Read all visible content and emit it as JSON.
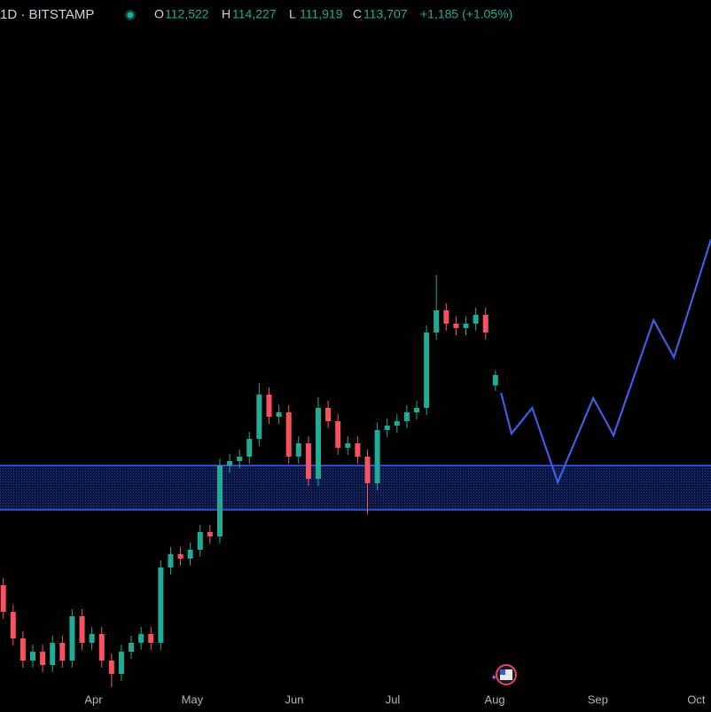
{
  "chart_data": {
    "type": "candlestick",
    "title": "1D · BITSTAMP",
    "legend_values": [
      {
        "label": "O",
        "value": "112,522"
      },
      {
        "label": "H",
        "value": "114,227"
      },
      {
        "label": "L",
        "value": "111,919"
      },
      {
        "label": "C",
        "value": "113,707"
      }
    ],
    "change": "+1,185 (+1.05%)",
    "up_color": "#22ab94",
    "down_color": "#f7525f",
    "x": [
      1,
      4,
      7,
      10,
      13,
      16,
      19,
      22,
      25,
      28,
      31,
      34,
      37,
      40,
      43,
      46,
      49,
      52,
      55,
      58,
      61,
      64,
      67,
      70,
      73,
      76,
      79,
      82,
      85,
      88,
      91,
      94,
      97,
      100,
      103,
      106,
      109,
      112,
      115,
      118,
      121,
      124,
      127,
      130,
      133,
      136,
      139,
      142,
      145,
      148,
      151
    ],
    "open": [
      90000,
      87000,
      84000,
      81500,
      82500,
      81000,
      83500,
      81500,
      86500,
      83500,
      84500,
      81500,
      80000,
      82500,
      83500,
      84500,
      83500,
      92000,
      93500,
      93000,
      94000,
      96000,
      95500,
      103500,
      104000,
      104500,
      106500,
      111500,
      109000,
      109500,
      104500,
      106000,
      102000,
      110000,
      108500,
      105500,
      106000,
      104500,
      101500,
      107500,
      108000,
      108500,
      109500,
      110000,
      118500,
      121000,
      119500,
      119000,
      119500,
      120500,
      112522
    ],
    "high": [
      90800,
      87800,
      84800,
      83300,
      83300,
      84300,
      84300,
      87300,
      87300,
      85300,
      85300,
      82300,
      83300,
      84300,
      85300,
      85300,
      92800,
      94300,
      94300,
      94800,
      96800,
      96800,
      104300,
      104800,
      105300,
      107300,
      112800,
      112300,
      110300,
      110300,
      106800,
      106800,
      111200,
      110800,
      109300,
      106800,
      106800,
      105300,
      108300,
      108800,
      109300,
      110300,
      110800,
      119300,
      125000,
      121800,
      120300,
      120300,
      121300,
      121300,
      114227
    ],
    "low": [
      86200,
      83200,
      80700,
      80700,
      80200,
      80200,
      80700,
      80700,
      82700,
      82700,
      80700,
      78500,
      79200,
      81700,
      82700,
      82700,
      82700,
      91200,
      92200,
      92200,
      93200,
      94700,
      94700,
      102700,
      103200,
      103700,
      105700,
      108200,
      108200,
      103700,
      103700,
      101200,
      101200,
      107700,
      104700,
      104700,
      103700,
      98000,
      100700,
      106700,
      107200,
      107700,
      108700,
      109200,
      117700,
      118700,
      118200,
      118200,
      118700,
      117700,
      111919
    ],
    "close": [
      87000,
      84000,
      81500,
      82500,
      81000,
      83500,
      81500,
      86500,
      83500,
      84500,
      81500,
      80000,
      82500,
      83500,
      84500,
      83500,
      92000,
      93500,
      93000,
      94000,
      96000,
      95500,
      103500,
      104000,
      104500,
      106500,
      111500,
      109000,
      109500,
      104500,
      106000,
      102000,
      110000,
      108500,
      105500,
      106000,
      104500,
      101500,
      107500,
      108000,
      108500,
      109500,
      110000,
      118500,
      121000,
      119500,
      119000,
      119500,
      120500,
      118500,
      113707
    ],
    "xlim": [
      0,
      216.7
    ],
    "xticks": [
      {
        "value": 28.5,
        "label": "Apr"
      },
      {
        "value": 58.6,
        "label": "May"
      },
      {
        "value": 89.7,
        "label": "Jun"
      },
      {
        "value": 119.7,
        "label": "Jul"
      },
      {
        "value": 150.8,
        "label": "Aug"
      },
      {
        "value": 182.2,
        "label": "Sep"
      },
      {
        "value": 212.2,
        "label": "Oct"
      }
    ],
    "ylim": [
      76000,
      156000
    ],
    "zone": {
      "low": 98500,
      "high": 103500,
      "color": "#3d5afe"
    },
    "projection": {
      "color": "#3f5fe0",
      "x": [
        152.7,
        155.9,
        162.2,
        170,
        180.8,
        187,
        199.2,
        205.4,
        216.7
      ],
      "values": [
        111700,
        107100,
        110000,
        101600,
        111100,
        106900,
        119900,
        115700,
        129000
      ]
    }
  }
}
